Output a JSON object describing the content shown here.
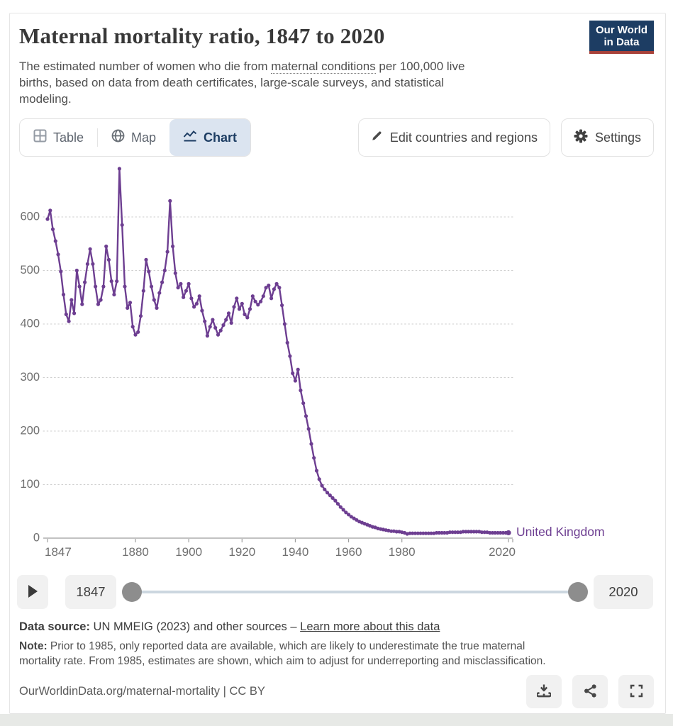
{
  "header": {
    "title": "Maternal mortality ratio, 1847 to 2020",
    "subtitle_part1": "The estimated number of women who die from ",
    "subtitle_link": "maternal conditions",
    "subtitle_part2": " per 100,000 live",
    "subtitle_line2": "births, based on data from death certificates, large-scale surveys, and statistical",
    "subtitle_line3": "modeling.",
    "logo": {
      "line1": "Our World",
      "line2": "in Data"
    }
  },
  "tabs": {
    "table_label": "Table",
    "map_label": "Map",
    "chart_label": "Chart"
  },
  "toolbar": {
    "edit_label": "Edit countries and regions",
    "settings_label": "Settings"
  },
  "timeline": {
    "start_year": "1847",
    "end_year": "2020"
  },
  "footer": {
    "source_label": "Data source:",
    "source_text": " UN MMEIG (2023) and other sources – ",
    "source_link": "Learn more about this data",
    "note_label": "Note:",
    "note_line1": " Prior to 1985, only reported data are available, which are likely to underestimate the true maternal",
    "note_line2": "mortality rate. From 1985, estimates are shown, which aim to adjust for underreporting and misclassification.",
    "citation": "OurWorldinData.org/maternal-mortality | CC BY"
  },
  "colors": {
    "series": "#6d3e91",
    "navy": "#1d3d63",
    "active_tab_bg": "#dbe4f0",
    "logo_red": "#a8423a",
    "grid": "#cecece",
    "axis": "#9e9e9e",
    "tick_text": "#6f6f6f"
  },
  "chart_data": {
    "type": "line",
    "title": "Maternal mortality ratio, 1847 to 2020",
    "xlabel": "",
    "ylabel": "",
    "x_range": [
      1847,
      2020
    ],
    "ylim": [
      0,
      700
    ],
    "yticks": [
      0,
      100,
      200,
      300,
      400,
      500,
      600
    ],
    "xticks": [
      1847,
      1880,
      1900,
      1920,
      1940,
      1960,
      1980,
      2020
    ],
    "grid": "dotted-horizontal",
    "legend_position": "end-of-line",
    "series": [
      {
        "name": "United Kingdom",
        "color": "#6d3e91",
        "points": [
          [
            1847,
            596
          ],
          [
            1848,
            612
          ],
          [
            1849,
            577
          ],
          [
            1850,
            555
          ],
          [
            1851,
            530
          ],
          [
            1852,
            498
          ],
          [
            1853,
            455
          ],
          [
            1854,
            418
          ],
          [
            1855,
            405
          ],
          [
            1856,
            445
          ],
          [
            1857,
            420
          ],
          [
            1858,
            500
          ],
          [
            1859,
            470
          ],
          [
            1860,
            437
          ],
          [
            1861,
            478
          ],
          [
            1862,
            512
          ],
          [
            1863,
            540
          ],
          [
            1864,
            512
          ],
          [
            1865,
            470
          ],
          [
            1866,
            437
          ],
          [
            1867,
            445
          ],
          [
            1868,
            470
          ],
          [
            1869,
            545
          ],
          [
            1870,
            520
          ],
          [
            1871,
            480
          ],
          [
            1872,
            455
          ],
          [
            1873,
            480
          ],
          [
            1874,
            690
          ],
          [
            1875,
            585
          ],
          [
            1876,
            470
          ],
          [
            1877,
            430
          ],
          [
            1878,
            440
          ],
          [
            1879,
            395
          ],
          [
            1880,
            380
          ],
          [
            1881,
            385
          ],
          [
            1882,
            415
          ],
          [
            1883,
            462
          ],
          [
            1884,
            520
          ],
          [
            1885,
            498
          ],
          [
            1886,
            470
          ],
          [
            1887,
            445
          ],
          [
            1888,
            430
          ],
          [
            1889,
            458
          ],
          [
            1890,
            478
          ],
          [
            1891,
            500
          ],
          [
            1892,
            535
          ],
          [
            1893,
            630
          ],
          [
            1894,
            545
          ],
          [
            1895,
            495
          ],
          [
            1896,
            468
          ],
          [
            1897,
            475
          ],
          [
            1898,
            450
          ],
          [
            1899,
            462
          ],
          [
            1900,
            475
          ],
          [
            1901,
            448
          ],
          [
            1902,
            432
          ],
          [
            1903,
            438
          ],
          [
            1904,
            452
          ],
          [
            1905,
            425
          ],
          [
            1906,
            405
          ],
          [
            1907,
            378
          ],
          [
            1908,
            395
          ],
          [
            1909,
            408
          ],
          [
            1910,
            393
          ],
          [
            1911,
            380
          ],
          [
            1912,
            388
          ],
          [
            1913,
            398
          ],
          [
            1914,
            408
          ],
          [
            1915,
            420
          ],
          [
            1916,
            402
          ],
          [
            1917,
            432
          ],
          [
            1918,
            448
          ],
          [
            1919,
            428
          ],
          [
            1920,
            438
          ],
          [
            1921,
            418
          ],
          [
            1922,
            412
          ],
          [
            1923,
            428
          ],
          [
            1924,
            452
          ],
          [
            1925,
            442
          ],
          [
            1926,
            436
          ],
          [
            1927,
            442
          ],
          [
            1928,
            452
          ],
          [
            1929,
            468
          ],
          [
            1930,
            472
          ],
          [
            1931,
            448
          ],
          [
            1932,
            465
          ],
          [
            1933,
            475
          ],
          [
            1934,
            468
          ],
          [
            1935,
            435
          ],
          [
            1936,
            400
          ],
          [
            1937,
            365
          ],
          [
            1938,
            340
          ],
          [
            1939,
            308
          ],
          [
            1940,
            294
          ],
          [
            1941,
            315
          ],
          [
            1942,
            276
          ],
          [
            1943,
            252
          ],
          [
            1944,
            228
          ],
          [
            1945,
            204
          ],
          [
            1946,
            176
          ],
          [
            1947,
            150
          ],
          [
            1948,
            126
          ],
          [
            1949,
            110
          ],
          [
            1950,
            98
          ],
          [
            1951,
            91
          ],
          [
            1952,
            85
          ],
          [
            1953,
            80
          ],
          [
            1954,
            75
          ],
          [
            1955,
            70
          ],
          [
            1956,
            64
          ],
          [
            1957,
            58
          ],
          [
            1958,
            53
          ],
          [
            1959,
            48
          ],
          [
            1960,
            44
          ],
          [
            1961,
            40
          ],
          [
            1962,
            37
          ],
          [
            1963,
            34
          ],
          [
            1964,
            31
          ],
          [
            1965,
            29
          ],
          [
            1966,
            27
          ],
          [
            1967,
            25
          ],
          [
            1968,
            23
          ],
          [
            1969,
            21
          ],
          [
            1970,
            20
          ],
          [
            1971,
            18
          ],
          [
            1972,
            17
          ],
          [
            1973,
            16
          ],
          [
            1974,
            15
          ],
          [
            1975,
            14
          ],
          [
            1976,
            13
          ],
          [
            1977,
            13
          ],
          [
            1978,
            12
          ],
          [
            1979,
            12
          ],
          [
            1980,
            11
          ],
          [
            1981,
            10
          ],
          [
            1982,
            8
          ],
          [
            1983,
            9
          ],
          [
            1984,
            9
          ],
          [
            1985,
            9
          ],
          [
            1986,
            9
          ],
          [
            1987,
            9
          ],
          [
            1988,
            9
          ],
          [
            1989,
            9
          ],
          [
            1990,
            9
          ],
          [
            1991,
            9
          ],
          [
            1992,
            9
          ],
          [
            1993,
            10
          ],
          [
            1994,
            10
          ],
          [
            1995,
            10
          ],
          [
            1996,
            10
          ],
          [
            1997,
            10
          ],
          [
            1998,
            11
          ],
          [
            1999,
            11
          ],
          [
            2000,
            11
          ],
          [
            2001,
            11
          ],
          [
            2002,
            11
          ],
          [
            2003,
            12
          ],
          [
            2004,
            12
          ],
          [
            2005,
            12
          ],
          [
            2006,
            12
          ],
          [
            2007,
            12
          ],
          [
            2008,
            12
          ],
          [
            2009,
            12
          ],
          [
            2010,
            11
          ],
          [
            2011,
            11
          ],
          [
            2012,
            11
          ],
          [
            2013,
            10
          ],
          [
            2014,
            10
          ],
          [
            2015,
            10
          ],
          [
            2016,
            10
          ],
          [
            2017,
            10
          ],
          [
            2018,
            10
          ],
          [
            2019,
            10
          ],
          [
            2020,
            10
          ]
        ]
      }
    ]
  }
}
